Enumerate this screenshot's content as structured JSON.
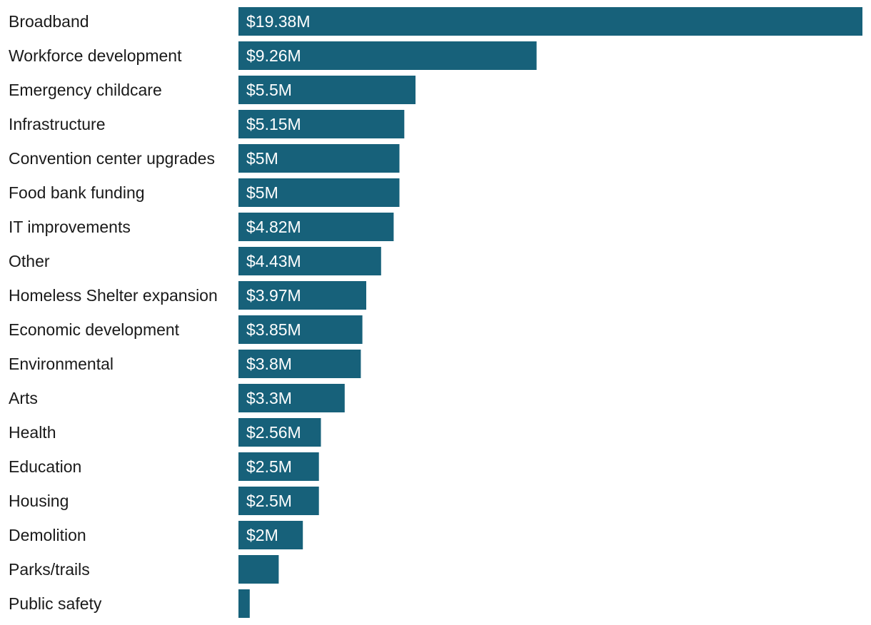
{
  "chart_data": {
    "type": "bar",
    "orientation": "horizontal",
    "categories": [
      "Broadband",
      "Workforce development",
      "Emergency childcare",
      "Infrastructure",
      "Convention center upgrades",
      "Food bank funding",
      "IT improvements",
      "Other",
      "Homeless Shelter expansion",
      "Economic development",
      "Environmental",
      "Arts",
      "Health",
      "Education",
      "Housing",
      "Demolition",
      "Parks/trails",
      "Public safety"
    ],
    "values": [
      19.38,
      9.26,
      5.5,
      5.15,
      5.0,
      5.0,
      4.82,
      4.43,
      3.97,
      3.85,
      3.8,
      3.3,
      2.56,
      2.5,
      2.5,
      2.0,
      1.25,
      0.35
    ],
    "value_labels": [
      "$19.38M",
      "$9.26M",
      "$5.5M",
      "$5.15M",
      "$5M",
      "$5M",
      "$4.82M",
      "$4.43M",
      "$3.97M",
      "$3.85M",
      "$3.8M",
      "$3.3M",
      "$2.56M",
      "$2.5M",
      "$2.5M",
      "$2M",
      "",
      ""
    ],
    "xlim": [
      0,
      19.38
    ],
    "grid": false,
    "legend": "none",
    "bar_color": "#17617a",
    "label_color": "#ffffff",
    "text_color": "#1a1a1a"
  }
}
